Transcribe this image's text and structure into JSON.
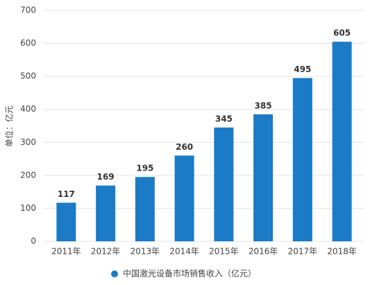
{
  "chart_data": {
    "type": "bar",
    "y_axis_label": "单位：亿元",
    "categories": [
      "2011年",
      "2012年",
      "2013年",
      "2014年",
      "2015年",
      "2016年",
      "2017年",
      "2018年"
    ],
    "series": [
      {
        "name": "中国激光设备市场销售收入（亿元）",
        "color": "#1b7bc7",
        "values": [
          117,
          169,
          195,
          260,
          345,
          385,
          495,
          605
        ]
      }
    ],
    "ylim": [
      0,
      700
    ],
    "yticks": [
      0,
      100,
      200,
      300,
      400,
      500,
      600,
      700
    ],
    "grid": true,
    "legend": "bottom"
  }
}
